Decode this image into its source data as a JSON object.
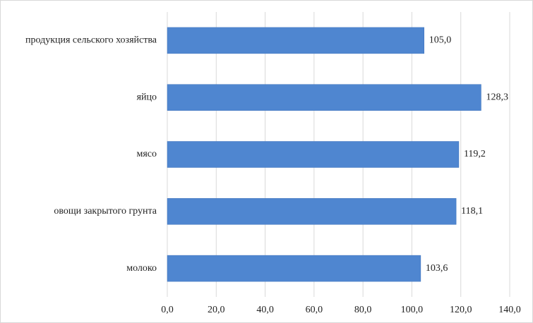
{
  "chart_data": {
    "type": "bar",
    "orientation": "horizontal",
    "categories": [
      "продукция сельского хозяйства",
      "яйцо",
      "мясо",
      "овощи закрытого грунта",
      "молоко"
    ],
    "values": [
      105.0,
      128.3,
      119.2,
      118.1,
      103.6
    ],
    "value_labels": [
      "105,0",
      "128,3",
      "119,2",
      "118,1",
      "103,6"
    ],
    "color": "#4f86d0",
    "xlim": [
      0,
      140
    ],
    "xticks": [
      {
        "value": 0,
        "label": "0,0"
      },
      {
        "value": 20,
        "label": "20,0"
      },
      {
        "value": 40,
        "label": "40,0"
      },
      {
        "value": 60,
        "label": "60,0"
      },
      {
        "value": 80,
        "label": "80,0"
      },
      {
        "value": 100,
        "label": "100,0"
      },
      {
        "value": 120,
        "label": "120,0"
      },
      {
        "value": 140,
        "label": "140,0"
      }
    ],
    "grid": true
  }
}
